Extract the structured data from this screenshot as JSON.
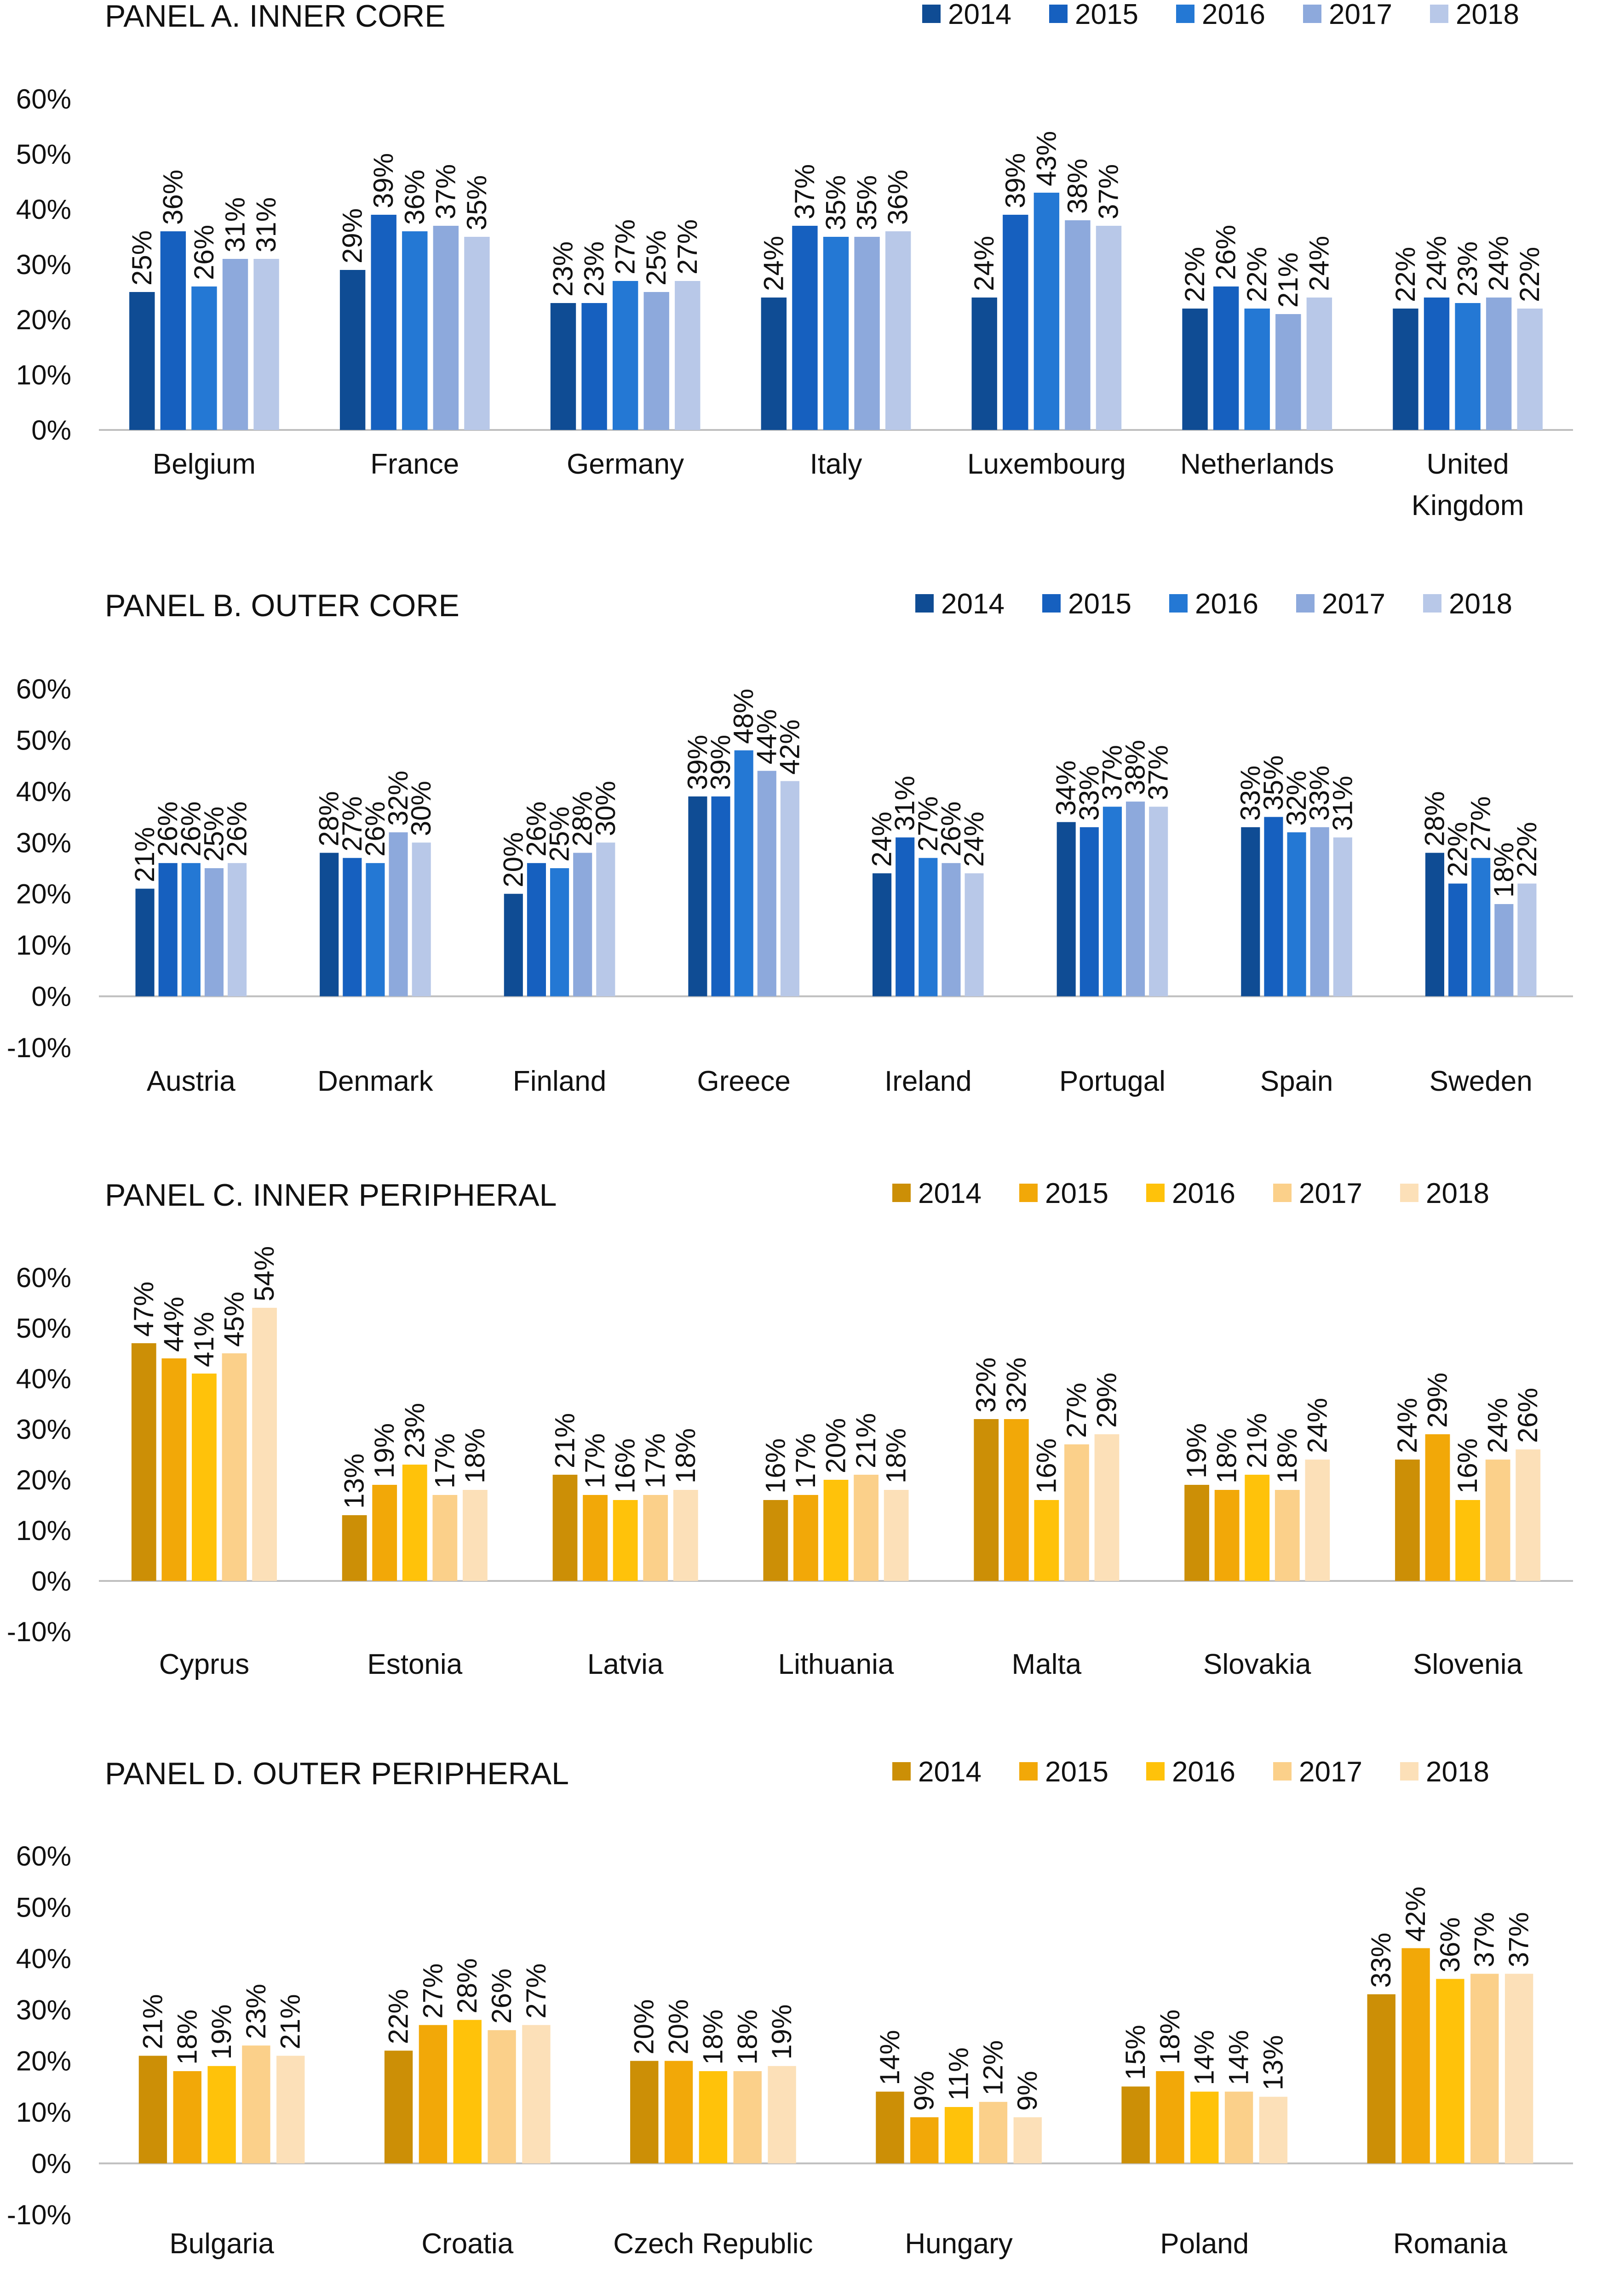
{
  "chart_data": [
    {
      "type": "bar",
      "panel": "A",
      "title": "PANEL A. INNER CORE",
      "categories": [
        "Belgium",
        "France",
        "Germany",
        "Italy",
        "Luxembourg",
        "Netherlands",
        "United Kingdom"
      ],
      "series": [
        {
          "name": "2014",
          "values": [
            25,
            29,
            23,
            24,
            24,
            22,
            22
          ]
        },
        {
          "name": "2015",
          "values": [
            36,
            39,
            23,
            37,
            39,
            26,
            24
          ]
        },
        {
          "name": "2016",
          "values": [
            26,
            36,
            27,
            35,
            43,
            22,
            23
          ]
        },
        {
          "name": "2017",
          "values": [
            31,
            37,
            25,
            35,
            38,
            21,
            24
          ]
        },
        {
          "name": "2018",
          "values": [
            31,
            35,
            27,
            36,
            37,
            24,
            22
          ]
        }
      ],
      "colors": [
        "#0f4c94",
        "#1660bf",
        "#2478d4",
        "#8da9dc",
        "#b8c8e8"
      ],
      "yticks": [
        "60%",
        "50%",
        "40%",
        "30%",
        "20%",
        "10%",
        "0%"
      ],
      "ylim": [
        0,
        60
      ],
      "value_suffix": "%",
      "legend": "top-right"
    },
    {
      "type": "bar",
      "panel": "B",
      "title": "PANEL B. OUTER CORE",
      "categories": [
        "Austria",
        "Denmark",
        "Finland",
        "Greece",
        "Ireland",
        "Portugal",
        "Spain",
        "Sweden"
      ],
      "series": [
        {
          "name": "2014",
          "values": [
            21,
            28,
            20,
            39,
            24,
            34,
            33,
            28
          ]
        },
        {
          "name": "2015",
          "values": [
            26,
            27,
            26,
            39,
            31,
            33,
            35,
            22
          ]
        },
        {
          "name": "2016",
          "values": [
            26,
            26,
            25,
            48,
            27,
            37,
            32,
            27
          ]
        },
        {
          "name": "2017",
          "values": [
            25,
            32,
            28,
            44,
            26,
            38,
            33,
            18
          ]
        },
        {
          "name": "2018",
          "values": [
            26,
            30,
            30,
            42,
            24,
            37,
            31,
            22
          ]
        }
      ],
      "colors": [
        "#0f4c94",
        "#1660bf",
        "#2478d4",
        "#8da9dc",
        "#b8c8e8"
      ],
      "yticks": [
        "60%",
        "50%",
        "40%",
        "30%",
        "20%",
        "10%",
        "0%",
        "-10%"
      ],
      "ylim": [
        -10,
        60
      ],
      "value_suffix": "%",
      "legend": "top-right"
    },
    {
      "type": "bar",
      "panel": "C",
      "title": "PANEL C. INNER PERIPHERAL",
      "categories": [
        "Cyprus",
        "Estonia",
        "Latvia",
        "Lithuania",
        "Malta",
        "Slovakia",
        "Slovenia"
      ],
      "series": [
        {
          "name": "2014",
          "values": [
            47,
            13,
            21,
            16,
            32,
            19,
            24
          ]
        },
        {
          "name": "2015",
          "values": [
            44,
            19,
            17,
            17,
            32,
            18,
            29
          ]
        },
        {
          "name": "2016",
          "values": [
            41,
            23,
            16,
            20,
            16,
            21,
            16
          ]
        },
        {
          "name": "2017",
          "values": [
            45,
            17,
            17,
            21,
            27,
            18,
            24
          ]
        },
        {
          "name": "2018",
          "values": [
            54,
            18,
            18,
            18,
            29,
            24,
            26
          ]
        }
      ],
      "colors": [
        "#cc8f06",
        "#f2a808",
        "#ffc20a",
        "#fbd08a",
        "#fce0b8"
      ],
      "yticks": [
        "60%",
        "50%",
        "40%",
        "30%",
        "20%",
        "10%",
        "0%",
        "-10%"
      ],
      "ylim": [
        -10,
        60
      ],
      "value_suffix": "%",
      "legend": "top-right"
    },
    {
      "type": "bar",
      "panel": "D",
      "title": "PANEL D. OUTER PERIPHERAL",
      "categories": [
        "Bulgaria",
        "Croatia",
        "Czech Republic",
        "Hungary",
        "Poland",
        "Romania"
      ],
      "series": [
        {
          "name": "2014",
          "values": [
            21,
            22,
            20,
            14,
            15,
            33
          ]
        },
        {
          "name": "2015",
          "values": [
            18,
            27,
            20,
            9,
            18,
            42
          ]
        },
        {
          "name": "2016",
          "values": [
            19,
            28,
            18,
            11,
            14,
            36
          ]
        },
        {
          "name": "2017",
          "values": [
            23,
            26,
            18,
            12,
            14,
            37
          ]
        },
        {
          "name": "2018",
          "values": [
            21,
            27,
            19,
            9,
            13,
            37
          ]
        }
      ],
      "colors": [
        "#cc8f06",
        "#f2a808",
        "#ffc20a",
        "#fbd08a",
        "#fce0b8"
      ],
      "yticks": [
        "60%",
        "50%",
        "40%",
        "30%",
        "20%",
        "10%",
        "0%",
        "-10%"
      ],
      "ylim": [
        -10,
        60
      ],
      "value_suffix": "%",
      "legend": "top-right"
    }
  ]
}
